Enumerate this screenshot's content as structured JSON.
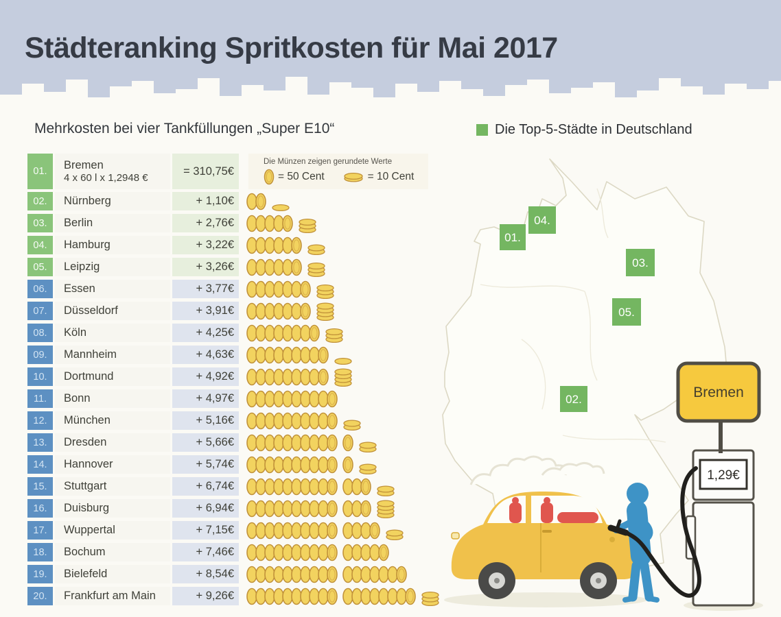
{
  "header": {
    "title": "Städteranking Spritkosten für Mai 2017"
  },
  "intro": {
    "subtitle": "Mehrkosten bei vier Tankfüllungen „Super E10“",
    "top5_legend": "Die Top-5-Städte in Deutschland"
  },
  "coin_note": {
    "text": "Die Münzen zeigen gerundete Werte",
    "coin_50": "= 50 Cent",
    "coin_10": "= 10 Cent"
  },
  "table": {
    "baseline": {
      "rank": "01.",
      "city": "Bremen",
      "formula": "4 x 60 l x 1,2948 €",
      "total": "= 310,75€"
    },
    "rows": [
      {
        "rank": "02.",
        "city": "Nürnberg",
        "value": "+ 1,10€",
        "amount": 1.1
      },
      {
        "rank": "03.",
        "city": "Berlin",
        "value": "+ 2,76€",
        "amount": 2.76
      },
      {
        "rank": "04.",
        "city": "Hamburg",
        "value": "+ 3,22€",
        "amount": 3.22
      },
      {
        "rank": "05.",
        "city": "Leipzig",
        "value": "+ 3,26€",
        "amount": 3.26
      },
      {
        "rank": "06.",
        "city": "Essen",
        "value": "+ 3,77€",
        "amount": 3.77
      },
      {
        "rank": "07.",
        "city": "Düsseldorf",
        "value": "+ 3,91€",
        "amount": 3.91
      },
      {
        "rank": "08.",
        "city": "Köln",
        "value": "+ 4,25€",
        "amount": 4.25
      },
      {
        "rank": "09.",
        "city": "Mannheim",
        "value": "+ 4,63€",
        "amount": 4.63
      },
      {
        "rank": "10.",
        "city": "Dortmund",
        "value": "+ 4,92€",
        "amount": 4.92
      },
      {
        "rank": "11.",
        "city": "Bonn",
        "value": "+ 4,97€",
        "amount": 4.97
      },
      {
        "rank": "12.",
        "city": "München",
        "value": "+ 5,16€",
        "amount": 5.16
      },
      {
        "rank": "13.",
        "city": "Dresden",
        "value": "+ 5,66€",
        "amount": 5.66
      },
      {
        "rank": "14.",
        "city": "Hannover",
        "value": "+ 5,74€",
        "amount": 5.74
      },
      {
        "rank": "15.",
        "city": "Stuttgart",
        "value": "+ 6,74€",
        "amount": 6.74
      },
      {
        "rank": "16.",
        "city": "Duisburg",
        "value": "+ 6,94€",
        "amount": 6.94
      },
      {
        "rank": "17.",
        "city": "Wuppertal",
        "value": "+ 7,15€",
        "amount": 7.15
      },
      {
        "rank": "18.",
        "city": "Bochum",
        "value": "+ 7,46€",
        "amount": 7.46
      },
      {
        "rank": "19.",
        "city": "Bielefeld",
        "value": "+ 8,54€",
        "amount": 8.54
      },
      {
        "rank": "20.",
        "city": "Frankfurt am Main",
        "value": "+ 9,26€",
        "amount": 9.26
      }
    ]
  },
  "map": {
    "markers": [
      {
        "label": "01."
      },
      {
        "label": "02."
      },
      {
        "label": "03."
      },
      {
        "label": "04."
      },
      {
        "label": "05."
      }
    ],
    "sign_label": "Bremen",
    "pump_price": "1,29€"
  },
  "colors": {
    "header_bg": "#c5cdde",
    "top5_green": "#74b661",
    "badge_green": "#8ac47a",
    "cell_green": "#e7efdd",
    "badge_blue": "#5d90c2",
    "cell_blue": "#dfe4ee",
    "coin_gold": "#f2d35f",
    "sign_yellow": "#f6c93e",
    "person_blue": "#3e93c6",
    "car_yellow": "#f0c14b"
  },
  "chart_data": {
    "type": "bar",
    "title": "Städteranking Spritkosten für Mai 2017",
    "subtitle": "Mehrkosten bei vier Tankfüllungen „Super E10“",
    "baseline": {
      "city": "Bremen",
      "calculation": "4 x 60 l x 1,2948 €",
      "total_eur": 310.75,
      "price_per_litre_eur": 1.2948
    },
    "unit": "EUR Mehrkosten gegenüber Bremen",
    "categories": [
      "Nürnberg",
      "Berlin",
      "Hamburg",
      "Leipzig",
      "Essen",
      "Düsseldorf",
      "Köln",
      "Mannheim",
      "Dortmund",
      "Bonn",
      "München",
      "Dresden",
      "Hannover",
      "Stuttgart",
      "Duisburg",
      "Wuppertal",
      "Bochum",
      "Bielefeld",
      "Frankfurt am Main"
    ],
    "values": [
      1.1,
      2.76,
      3.22,
      3.26,
      3.77,
      3.91,
      4.25,
      4.63,
      4.92,
      4.97,
      5.16,
      5.66,
      5.74,
      6.74,
      6.94,
      7.15,
      7.46,
      8.54,
      9.26
    ],
    "coin_units": {
      "standing_coin_eur": 0.5,
      "flat_coin_eur": 0.1
    },
    "top5": [
      "Bremen",
      "Nürnberg",
      "Berlin",
      "Hamburg",
      "Leipzig"
    ],
    "legend_position": "top-right",
    "grid": false
  }
}
